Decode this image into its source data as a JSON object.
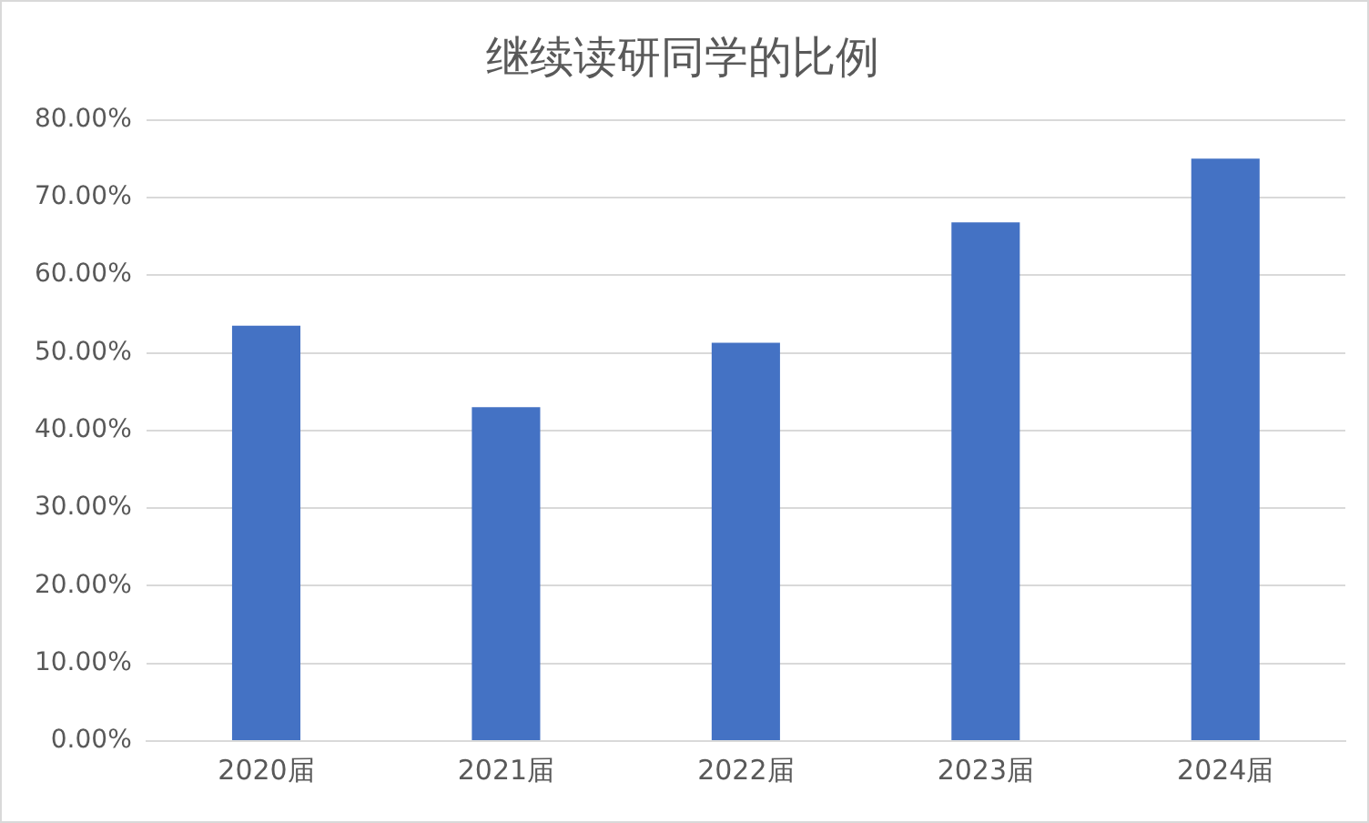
{
  "chart_data": {
    "type": "bar",
    "title": "继续读研同学的比例",
    "categories": [
      "2020届",
      "2021届",
      "2022届",
      "2023届",
      "2024届"
    ],
    "values": [
      53.5,
      43.0,
      51.3,
      66.8,
      75.0
    ],
    "color": "#4472c4",
    "ylim": [
      0,
      80
    ],
    "yticks": [
      {
        "value": 0,
        "label": "0.00%"
      },
      {
        "value": 10,
        "label": "10.00%"
      },
      {
        "value": 20,
        "label": "20.00%"
      },
      {
        "value": 30,
        "label": "30.00%"
      },
      {
        "value": 40,
        "label": "40.00%"
      },
      {
        "value": 50,
        "label": "50.00%"
      },
      {
        "value": 60,
        "label": "60.00%"
      },
      {
        "value": 70,
        "label": "70.00%"
      },
      {
        "value": 80,
        "label": "80.00%"
      }
    ],
    "grid": "y",
    "legend": false
  }
}
